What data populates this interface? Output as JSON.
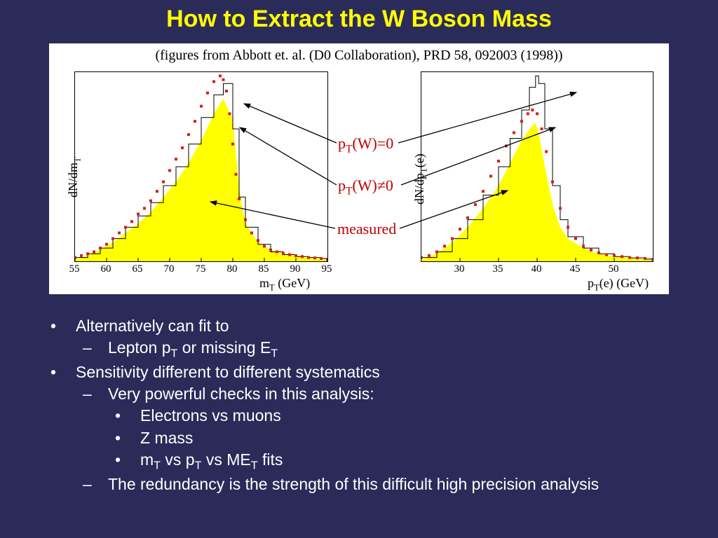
{
  "title": "How to Extract the W Boson Mass",
  "caption": "(figures from Abbott et. al. (D0 Collaboration), PRD 58, 092003 (1998))",
  "colors": {
    "slide_bg": "#2b2b5a",
    "title_text": "#ffff00",
    "body_text": "#ffffff",
    "panel_bg": "#ffffff",
    "axis": "#000000",
    "fill": "#ffff00",
    "marker": "#d62020",
    "hist": "#000000",
    "annot_text": "#c00000",
    "arrow": "#000000"
  },
  "plot_left": {
    "ylabel": "dN/dm_T",
    "xlabel": "m_T (GeV)",
    "xlim": [
      55,
      95
    ],
    "xticks": [
      55,
      60,
      65,
      70,
      75,
      80,
      85,
      90,
      95
    ],
    "ylim": [
      0,
      100
    ],
    "fill_series": {
      "type": "area",
      "color": "#ffff00",
      "points": [
        [
          55,
          1
        ],
        [
          57,
          3
        ],
        [
          59,
          6
        ],
        [
          61,
          10
        ],
        [
          63,
          15
        ],
        [
          65,
          20
        ],
        [
          67,
          26
        ],
        [
          69,
          34
        ],
        [
          71,
          42
        ],
        [
          73,
          52
        ],
        [
          75,
          64
        ],
        [
          77,
          78
        ],
        [
          78.5,
          86
        ],
        [
          80,
          75
        ],
        [
          81,
          38
        ],
        [
          82,
          20
        ],
        [
          84,
          10
        ],
        [
          86,
          6
        ],
        [
          88,
          4
        ],
        [
          90,
          3
        ],
        [
          92,
          2
        ],
        [
          94,
          1.5
        ],
        [
          95,
          1
        ]
      ]
    },
    "hist_series": {
      "type": "step",
      "color": "#000000",
      "points": [
        [
          55,
          2
        ],
        [
          57,
          4
        ],
        [
          59,
          7
        ],
        [
          61,
          12
        ],
        [
          63,
          18
        ],
        [
          65,
          24
        ],
        [
          67,
          31
        ],
        [
          69,
          40
        ],
        [
          71,
          50
        ],
        [
          73,
          62
        ],
        [
          75,
          76
        ],
        [
          77,
          88
        ],
        [
          78.5,
          94
        ],
        [
          80,
          70
        ],
        [
          81,
          34
        ],
        [
          82,
          18
        ],
        [
          84,
          9
        ],
        [
          86,
          5
        ],
        [
          88,
          3.5
        ],
        [
          90,
          2.5
        ],
        [
          92,
          2
        ],
        [
          94,
          1.5
        ],
        [
          95,
          1
        ]
      ]
    },
    "marker_series": {
      "type": "scatter",
      "color": "#d62020",
      "marker": "square",
      "size": 4,
      "points": [
        [
          55,
          2
        ],
        [
          56,
          3
        ],
        [
          57,
          4
        ],
        [
          58,
          5
        ],
        [
          59,
          7
        ],
        [
          60,
          9
        ],
        [
          61,
          12
        ],
        [
          62,
          15
        ],
        [
          63,
          18
        ],
        [
          64,
          21
        ],
        [
          65,
          25
        ],
        [
          66,
          28
        ],
        [
          67,
          32
        ],
        [
          68,
          37
        ],
        [
          69,
          42
        ],
        [
          70,
          48
        ],
        [
          71,
          54
        ],
        [
          72,
          60
        ],
        [
          73,
          67
        ],
        [
          74,
          74
        ],
        [
          75,
          82
        ],
        [
          76,
          89
        ],
        [
          77,
          95
        ],
        [
          78,
          98
        ],
        [
          78.5,
          96
        ],
        [
          79,
          90
        ],
        [
          79.5,
          78
        ],
        [
          80,
          62
        ],
        [
          80.5,
          46
        ],
        [
          81,
          33
        ],
        [
          82,
          22
        ],
        [
          83,
          15
        ],
        [
          84,
          11
        ],
        [
          85,
          8
        ],
        [
          86,
          6
        ],
        [
          87,
          5
        ],
        [
          88,
          4
        ],
        [
          89,
          3.5
        ],
        [
          90,
          3
        ],
        [
          91,
          2.5
        ],
        [
          92,
          2
        ],
        [
          93,
          1.8
        ],
        [
          94,
          1.5
        ],
        [
          95,
          1
        ]
      ]
    }
  },
  "plot_right": {
    "ylabel": "dN/dp_T(e)",
    "xlabel": "p_T(e) (GeV)",
    "xlim": [
      25,
      55
    ],
    "xticks": [
      30,
      35,
      40,
      45,
      50
    ],
    "ylim": [
      0,
      100
    ],
    "fill_series": {
      "type": "area",
      "color": "#ffff00",
      "points": [
        [
          25,
          1
        ],
        [
          27,
          4
        ],
        [
          29,
          10
        ],
        [
          31,
          18
        ],
        [
          33,
          28
        ],
        [
          35,
          40
        ],
        [
          36.5,
          52
        ],
        [
          38,
          64
        ],
        [
          39,
          70
        ],
        [
          39.8,
          73
        ],
        [
          40.2,
          68
        ],
        [
          41,
          50
        ],
        [
          42,
          30
        ],
        [
          43,
          18
        ],
        [
          44,
          12
        ],
        [
          46,
          7
        ],
        [
          48,
          4
        ],
        [
          50,
          2.5
        ],
        [
          52,
          1.8
        ],
        [
          54,
          1.2
        ],
        [
          55,
          1
        ]
      ]
    },
    "hist_series": {
      "type": "step",
      "color": "#000000",
      "points": [
        [
          25,
          2
        ],
        [
          27,
          5
        ],
        [
          29,
          12
        ],
        [
          31,
          22
        ],
        [
          33,
          35
        ],
        [
          35,
          50
        ],
        [
          36.5,
          65
        ],
        [
          38,
          80
        ],
        [
          39,
          92
        ],
        [
          39.8,
          98
        ],
        [
          40.2,
          94
        ],
        [
          41,
          70
        ],
        [
          42,
          40
        ],
        [
          43,
          22
        ],
        [
          44,
          13
        ],
        [
          46,
          7
        ],
        [
          48,
          4
        ],
        [
          50,
          2.5
        ],
        [
          52,
          1.8
        ],
        [
          54,
          1.2
        ],
        [
          55,
          1
        ]
      ]
    },
    "marker_series": {
      "type": "scatter",
      "color": "#d62020",
      "marker": "square",
      "size": 4,
      "points": [
        [
          25,
          2
        ],
        [
          26,
          3
        ],
        [
          27,
          5
        ],
        [
          28,
          8
        ],
        [
          29,
          12
        ],
        [
          30,
          17
        ],
        [
          31,
          23
        ],
        [
          32,
          30
        ],
        [
          33,
          37
        ],
        [
          34,
          45
        ],
        [
          35,
          53
        ],
        [
          36,
          61
        ],
        [
          37,
          68
        ],
        [
          38,
          74
        ],
        [
          38.8,
          78
        ],
        [
          39.4,
          80
        ],
        [
          40,
          78
        ],
        [
          40.6,
          70
        ],
        [
          41.2,
          58
        ],
        [
          42,
          42
        ],
        [
          43,
          28
        ],
        [
          44,
          18
        ],
        [
          45,
          12
        ],
        [
          46,
          8
        ],
        [
          47,
          6
        ],
        [
          48,
          4.5
        ],
        [
          49,
          3.5
        ],
        [
          50,
          3
        ],
        [
          51,
          2.5
        ],
        [
          52,
          2
        ],
        [
          53,
          1.8
        ],
        [
          54,
          1.5
        ],
        [
          55,
          1
        ]
      ]
    }
  },
  "annotations": {
    "ptw0": "p_T(W)=0",
    "ptwne0": "p_T(W)≠0",
    "measured": "measured"
  },
  "bullets": {
    "b1": "Alternatively can fit to",
    "b1a_pre": "Lepton p",
    "b1a_sub1": "T",
    "b1a_mid": " or missing E",
    "b1a_sub2": "T",
    "b2": "Sensitivity different to different systematics",
    "b2a": "Very powerful checks in this analysis:",
    "b2a1": "Electrons vs muons",
    "b2a2": "Z mass",
    "b2a3_pre": "m",
    "b2a3_s1": "T",
    "b2a3_m1": " vs p",
    "b2a3_s2": "T",
    "b2a3_m2": " vs ME",
    "b2a3_s3": "T",
    "b2a3_end": " fits",
    "b2b": "The redundancy is the strength of this difficult high precision analysis"
  }
}
